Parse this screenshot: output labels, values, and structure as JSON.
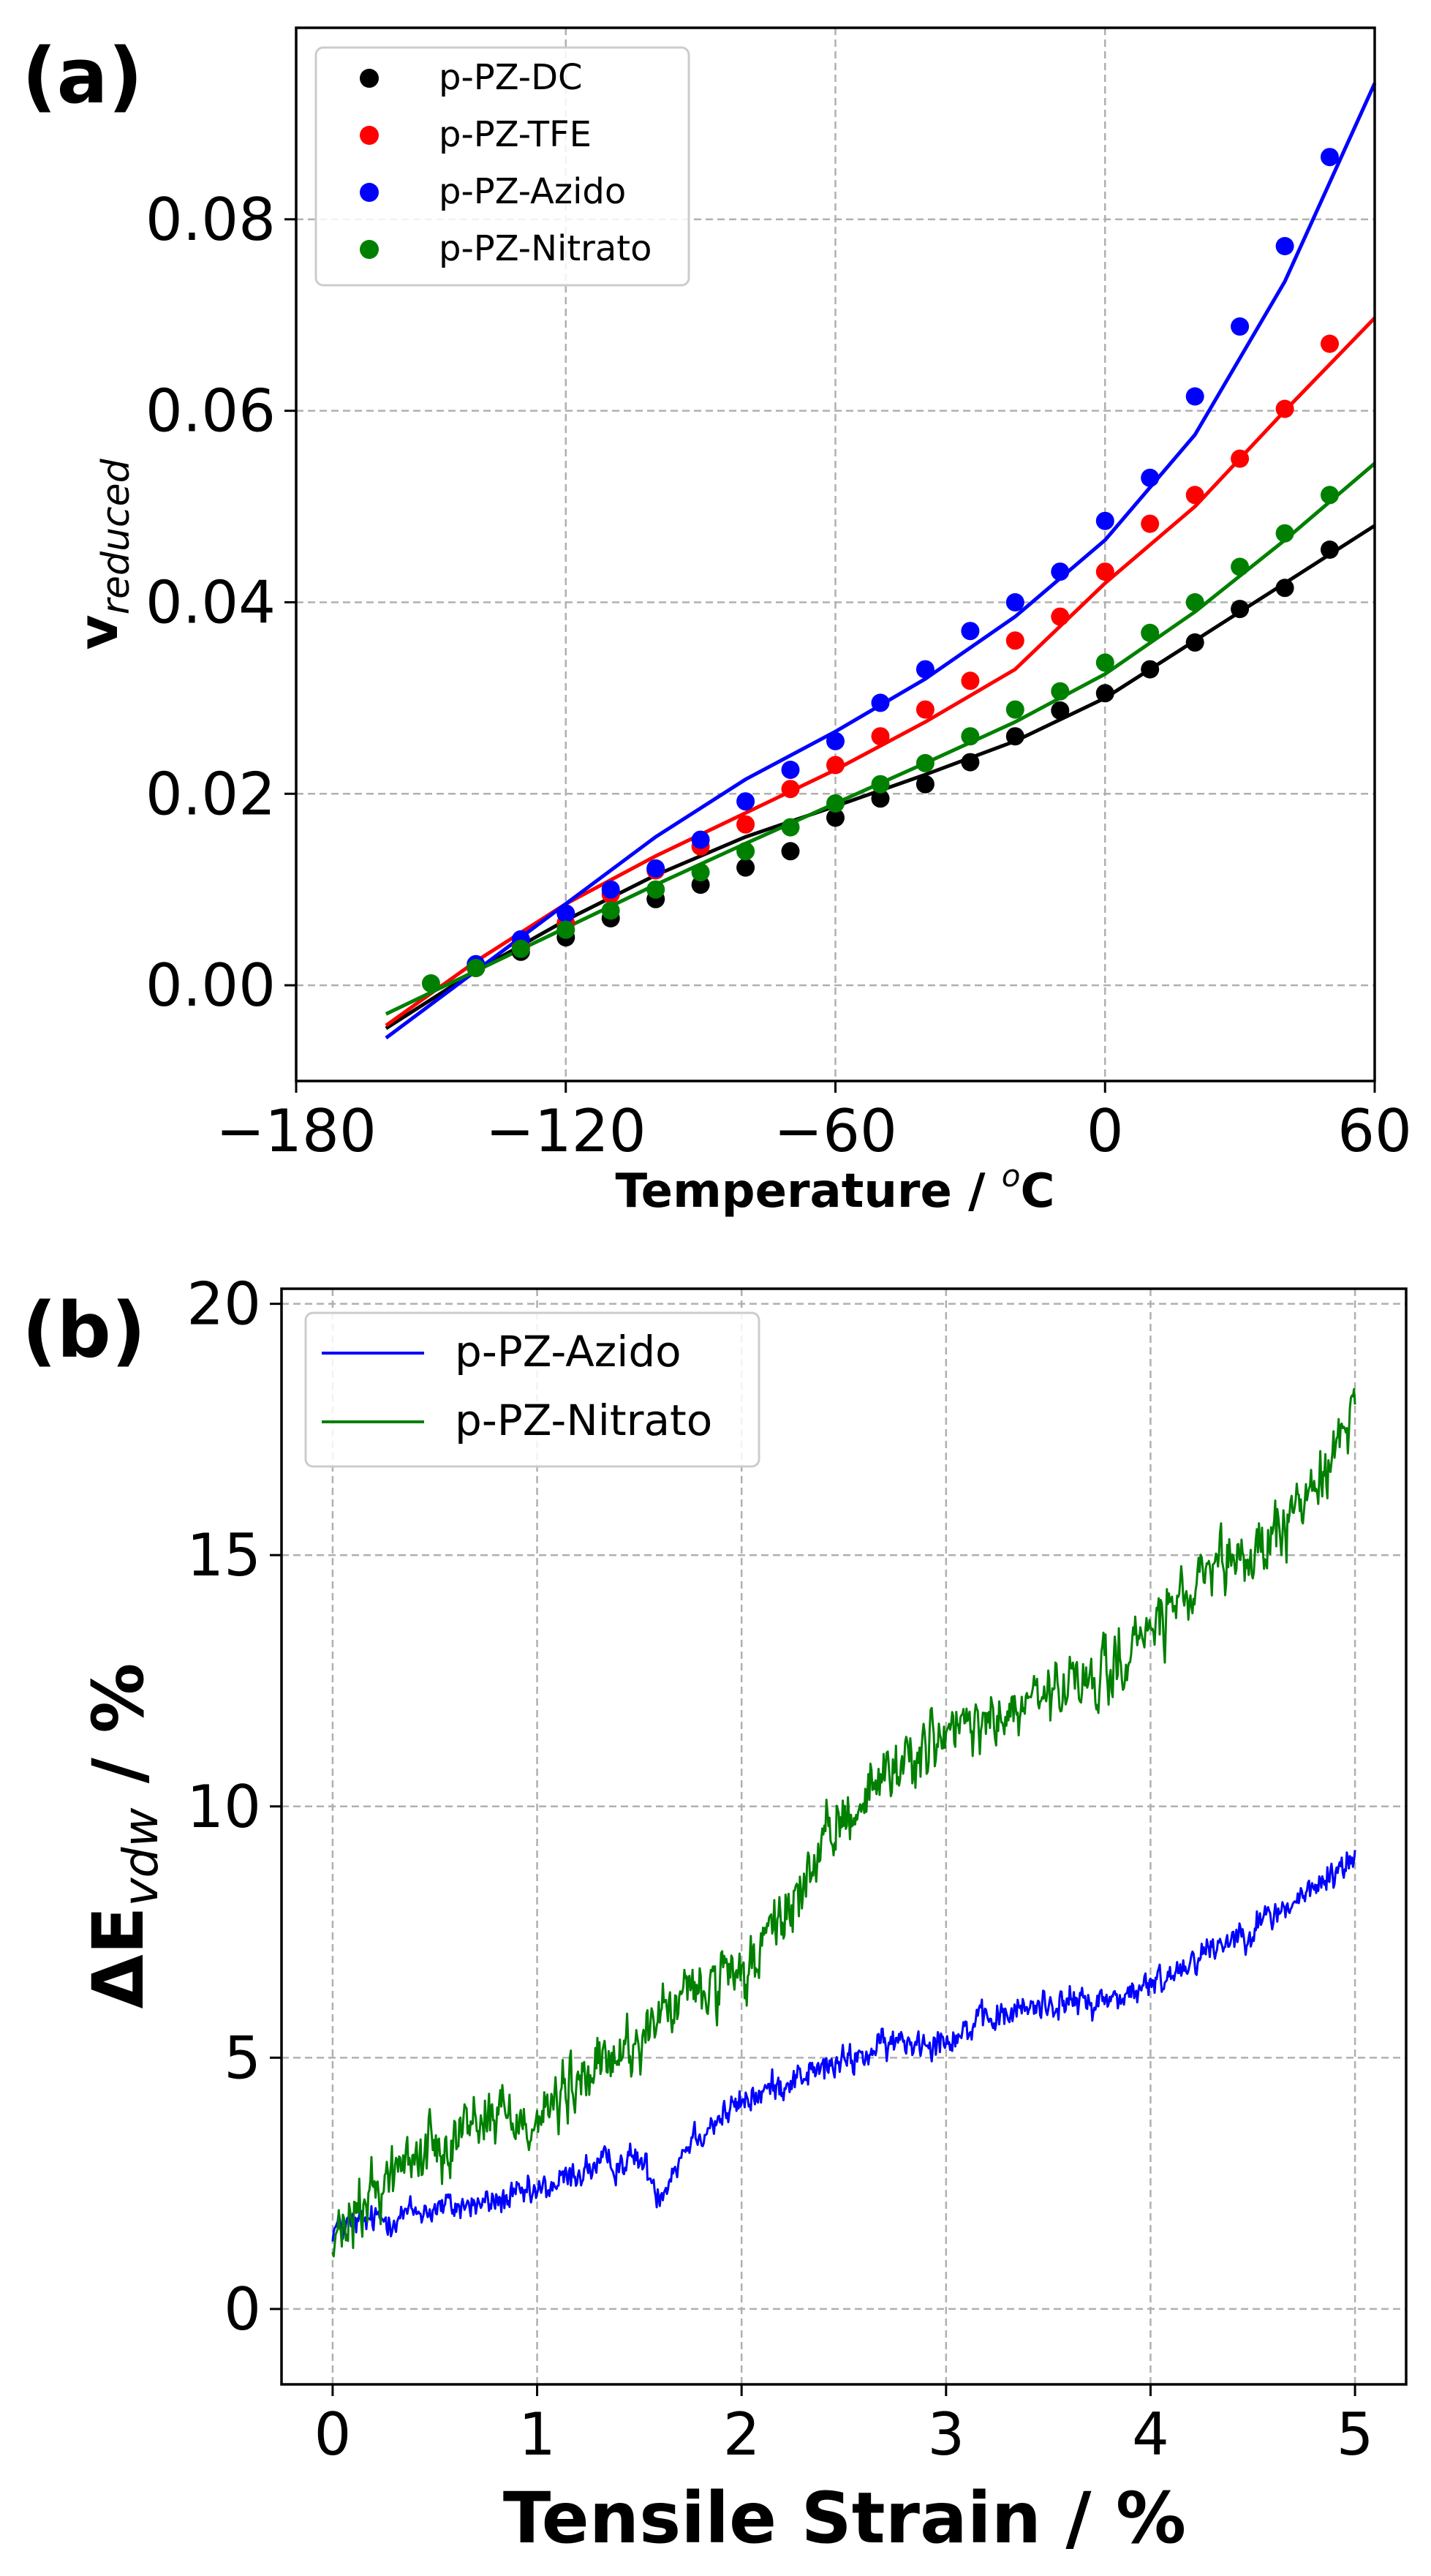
{
  "chart_data": [
    {
      "type": "scatter",
      "panel_label": "(a)",
      "xlabel_main": "Temperature / ",
      "xlabel_sup": "o",
      "xlabel_end": "C",
      "ylabel_main": "v",
      "ylabel_sub": "reduced",
      "xlim": [
        -180,
        60
      ],
      "ylim": [
        -0.01,
        0.1
      ],
      "xticks": [
        -180,
        -120,
        -60,
        0,
        60
      ],
      "xtick_labels": [
        "−180",
        "−120",
        "−60",
        "0",
        "60"
      ],
      "yticks": [
        0.0,
        0.02,
        0.04,
        0.06,
        0.08
      ],
      "ytick_labels": [
        "0.00",
        "0.02",
        "0.04",
        "0.06",
        "0.08"
      ],
      "grid": true,
      "legend_position": "top-left",
      "series": [
        {
          "name": "p-PZ-DC",
          "color": "#000000",
          "points": [
            [
              -140,
              0.002
            ],
            [
              -130,
              0.0035
            ],
            [
              -120,
              0.005
            ],
            [
              -110,
              0.007
            ],
            [
              -100,
              0.009
            ],
            [
              -90,
              0.0105
            ],
            [
              -80,
              0.0123
            ],
            [
              -70,
              0.014
            ],
            [
              -60,
              0.0175
            ],
            [
              -50,
              0.0195
            ],
            [
              -40,
              0.021
            ],
            [
              -30,
              0.0233
            ],
            [
              -20,
              0.026
            ],
            [
              -10,
              0.0287
            ],
            [
              0,
              0.0305
            ],
            [
              10,
              0.033
            ],
            [
              20,
              0.0358
            ],
            [
              30,
              0.0393
            ],
            [
              40,
              0.0415
            ],
            [
              50,
              0.0455
            ]
          ],
          "fit": [
            [
              -160,
              -0.0045
            ],
            [
              -140,
              0.0015
            ],
            [
              -120,
              0.0068
            ],
            [
              -100,
              0.0115
            ],
            [
              -80,
              0.0155
            ],
            [
              -60,
              0.0187
            ],
            [
              -40,
              0.022
            ],
            [
              -20,
              0.0255
            ],
            [
              0,
              0.03
            ],
            [
              20,
              0.036
            ],
            [
              40,
              0.042
            ],
            [
              60,
              0.048
            ]
          ]
        },
        {
          "name": "p-PZ-TFE",
          "color": "#ff0000",
          "points": [
            [
              -140,
              0.0018
            ],
            [
              -130,
              0.004
            ],
            [
              -120,
              0.0065
            ],
            [
              -110,
              0.0095
            ],
            [
              -100,
              0.012
            ],
            [
              -90,
              0.0145
            ],
            [
              -80,
              0.0168
            ],
            [
              -70,
              0.0205
            ],
            [
              -60,
              0.023
            ],
            [
              -50,
              0.026
            ],
            [
              -40,
              0.0288
            ],
            [
              -30,
              0.0318
            ],
            [
              -20,
              0.036
            ],
            [
              -10,
              0.0385
            ],
            [
              0,
              0.0432
            ],
            [
              10,
              0.0482
            ],
            [
              20,
              0.0512
            ],
            [
              30,
              0.055
            ],
            [
              40,
              0.0602
            ],
            [
              50,
              0.067
            ]
          ],
          "fit": [
            [
              -160,
              -0.0042
            ],
            [
              -140,
              0.0025
            ],
            [
              -120,
              0.0085
            ],
            [
              -100,
              0.0135
            ],
            [
              -80,
              0.018
            ],
            [
              -60,
              0.0225
            ],
            [
              -40,
              0.0275
            ],
            [
              -20,
              0.033
            ],
            [
              0,
              0.042
            ],
            [
              20,
              0.05
            ],
            [
              40,
              0.06
            ],
            [
              60,
              0.0697
            ]
          ]
        },
        {
          "name": "p-PZ-Azido",
          "color": "#0000ff",
          "points": [
            [
              -140,
              0.0022
            ],
            [
              -130,
              0.0048
            ],
            [
              -120,
              0.0075
            ],
            [
              -110,
              0.01
            ],
            [
              -100,
              0.0122
            ],
            [
              -90,
              0.0152
            ],
            [
              -80,
              0.0192
            ],
            [
              -70,
              0.0225
            ],
            [
              -60,
              0.0255
            ],
            [
              -50,
              0.0295
            ],
            [
              -40,
              0.033
            ],
            [
              -30,
              0.037
            ],
            [
              -20,
              0.04
            ],
            [
              -10,
              0.0432
            ],
            [
              0,
              0.0485
            ],
            [
              10,
              0.053
            ],
            [
              20,
              0.0615
            ],
            [
              30,
              0.0688
            ],
            [
              40,
              0.0772
            ],
            [
              50,
              0.0865
            ]
          ],
          "fit": [
            [
              -160,
              -0.0055
            ],
            [
              -140,
              0.0015
            ],
            [
              -120,
              0.0085
            ],
            [
              -100,
              0.0155
            ],
            [
              -80,
              0.0215
            ],
            [
              -60,
              0.0265
            ],
            [
              -40,
              0.032
            ],
            [
              -20,
              0.0385
            ],
            [
              0,
              0.0465
            ],
            [
              20,
              0.0575
            ],
            [
              40,
              0.0735
            ],
            [
              60,
              0.0942
            ]
          ]
        },
        {
          "name": "p-PZ-Nitrato",
          "color": "#008000",
          "points": [
            [
              -150,
              0.0002
            ],
            [
              -140,
              0.0018
            ],
            [
              -130,
              0.0038
            ],
            [
              -120,
              0.0058
            ],
            [
              -110,
              0.0078
            ],
            [
              -100,
              0.01
            ],
            [
              -90,
              0.0118
            ],
            [
              -80,
              0.014
            ],
            [
              -70,
              0.0165
            ],
            [
              -60,
              0.019
            ],
            [
              -50,
              0.021
            ],
            [
              -40,
              0.0232
            ],
            [
              -30,
              0.026
            ],
            [
              -20,
              0.0288
            ],
            [
              -10,
              0.0307
            ],
            [
              0,
              0.0337
            ],
            [
              10,
              0.0368
            ],
            [
              20,
              0.04
            ],
            [
              30,
              0.0437
            ],
            [
              40,
              0.0472
            ],
            [
              50,
              0.0512
            ]
          ],
          "fit": [
            [
              -160,
              -0.003
            ],
            [
              -140,
              0.0015
            ],
            [
              -120,
              0.006
            ],
            [
              -100,
              0.0105
            ],
            [
              -80,
              0.0148
            ],
            [
              -60,
              0.019
            ],
            [
              -40,
              0.0232
            ],
            [
              -20,
              0.0275
            ],
            [
              0,
              0.0325
            ],
            [
              20,
              0.039
            ],
            [
              40,
              0.0465
            ],
            [
              60,
              0.0545
            ]
          ]
        }
      ]
    },
    {
      "type": "line",
      "panel_label": "(b)",
      "xlabel": "Tensile Strain / %",
      "ylabel_main": "ΔE",
      "ylabel_sub": "vdw",
      "ylabel_end": " / %",
      "xlim": [
        -0.25,
        5.25
      ],
      "ylim": [
        -1.5,
        20.3
      ],
      "xticks": [
        0,
        1,
        2,
        3,
        4,
        5
      ],
      "xtick_labels": [
        "0",
        "1",
        "2",
        "3",
        "4",
        "5"
      ],
      "yticks": [
        0,
        5,
        10,
        15,
        20
      ],
      "ytick_labels": [
        "0",
        "5",
        "10",
        "15",
        "20"
      ],
      "grid": true,
      "legend_position": "top-left",
      "series": [
        {
          "name": "p-PZ-Azido",
          "color": "#0000ff",
          "x_range": [
            0,
            5
          ],
          "noise": 0.45,
          "trend": [
            [
              0,
              1.6
            ],
            [
              0.25,
              1.8
            ],
            [
              0.5,
              2.0
            ],
            [
              0.75,
              2.1
            ],
            [
              1.0,
              2.3
            ],
            [
              1.25,
              2.8
            ],
            [
              1.5,
              3.0
            ],
            [
              1.6,
              2.3
            ],
            [
              1.75,
              3.4
            ],
            [
              2.0,
              4.1
            ],
            [
              2.25,
              4.6
            ],
            [
              2.5,
              4.9
            ],
            [
              2.75,
              5.3
            ],
            [
              3.0,
              5.4
            ],
            [
              3.25,
              5.8
            ],
            [
              3.5,
              6.1
            ],
            [
              3.75,
              6.1
            ],
            [
              4.0,
              6.4
            ],
            [
              4.25,
              7.1
            ],
            [
              4.5,
              7.6
            ],
            [
              4.75,
              8.2
            ],
            [
              5.0,
              9.0
            ]
          ]
        },
        {
          "name": "p-PZ-Nitrato",
          "color": "#008000",
          "x_range": [
            0,
            5
          ],
          "noise": 0.9,
          "trend": [
            [
              0,
              1.2
            ],
            [
              0.25,
              2.6
            ],
            [
              0.5,
              3.3
            ],
            [
              0.75,
              3.9
            ],
            [
              1.0,
              3.8
            ],
            [
              1.25,
              4.6
            ],
            [
              1.5,
              5.4
            ],
            [
              1.75,
              6.3
            ],
            [
              2.0,
              6.5
            ],
            [
              2.25,
              8.1
            ],
            [
              2.5,
              9.8
            ],
            [
              2.75,
              10.8
            ],
            [
              3.0,
              11.4
            ],
            [
              3.25,
              11.7
            ],
            [
              3.5,
              12.2
            ],
            [
              3.75,
              12.5
            ],
            [
              4.0,
              13.5
            ],
            [
              4.25,
              14.4
            ],
            [
              4.5,
              15.0
            ],
            [
              4.75,
              16.0
            ],
            [
              5.0,
              18.0
            ]
          ]
        }
      ]
    }
  ]
}
